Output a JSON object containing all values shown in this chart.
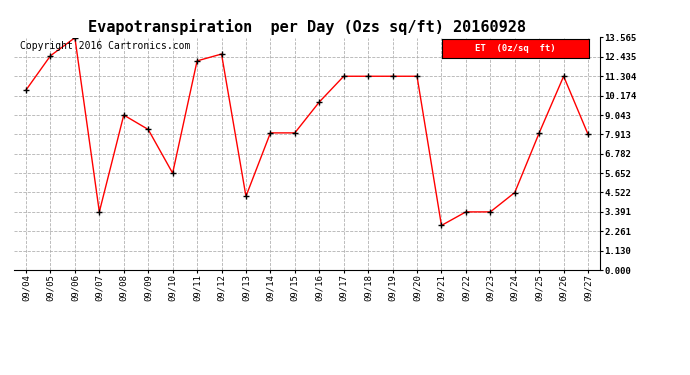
{
  "title": "Evapotranspiration  per Day (Ozs sq/ft) 20160928",
  "copyright": "Copyright 2016 Cartronics.com",
  "legend_label": "ET  (0z/sq  ft)",
  "dates": [
    "09/04",
    "09/05",
    "09/06",
    "09/07",
    "09/08",
    "09/09",
    "09/10",
    "09/11",
    "09/12",
    "09/13",
    "09/14",
    "09/15",
    "09/16",
    "09/17",
    "09/18",
    "09/19",
    "09/20",
    "09/21",
    "09/22",
    "09/23",
    "09/24",
    "09/25",
    "09/26",
    "09/27"
  ],
  "values": [
    10.5,
    12.5,
    13.55,
    3.39,
    9.04,
    8.2,
    5.65,
    12.2,
    12.6,
    4.3,
    8.0,
    8.0,
    9.8,
    11.304,
    11.304,
    11.304,
    11.304,
    2.6,
    3.39,
    3.39,
    4.52,
    8.0,
    11.304,
    7.91
  ],
  "yticks": [
    0.0,
    1.13,
    2.261,
    3.391,
    4.522,
    5.652,
    6.782,
    7.913,
    9.043,
    10.174,
    11.304,
    12.435,
    13.565
  ],
  "ylim": [
    0.0,
    13.565
  ],
  "line_color": "red",
  "marker_color": "black",
  "bg_color": "white",
  "grid_color": "#aaaaaa",
  "title_fontsize": 11,
  "copyright_fontsize": 7,
  "legend_bg": "red",
  "legend_text_color": "white"
}
